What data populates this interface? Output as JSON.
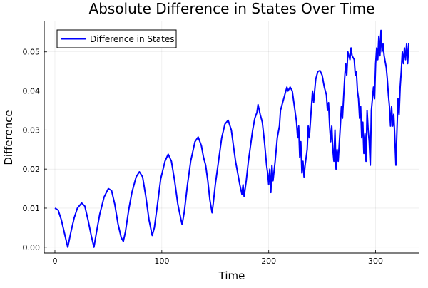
{
  "chart_data": {
    "type": "line",
    "title": "Absolute Difference in States Over Time",
    "xlabel": "Time",
    "ylabel": "Difference",
    "xlim": [
      -10,
      341
    ],
    "ylim": [
      -0.0015,
      0.0578
    ],
    "xticks": [
      0,
      100,
      200,
      300
    ],
    "xtick_labels": [
      "0",
      "100",
      "200",
      "300"
    ],
    "yticks": [
      0,
      0.01,
      0.02,
      0.03,
      0.04,
      0.05
    ],
    "ytick_labels": [
      "0.00",
      "0.01",
      "0.02",
      "0.03",
      "0.04",
      "0.05"
    ],
    "grid": true,
    "legend_position": "top-left",
    "series": [
      {
        "name": "Difference in States",
        "color": "#0000ff",
        "x": [
          0,
          3,
          6,
          9,
          12,
          15,
          18,
          21,
          25,
          28,
          31,
          34,
          36.5,
          39,
          42,
          46,
          50,
          53,
          56,
          59,
          62,
          64,
          66,
          69,
          72,
          76,
          79,
          82,
          85,
          88,
          91,
          93,
          96,
          99,
          103,
          106,
          109,
          112,
          115,
          118,
          119,
          121,
          124,
          127,
          131,
          134,
          137,
          139,
          141,
          143,
          145,
          147,
          148,
          150,
          153,
          156,
          159,
          162,
          165,
          167,
          169,
          171,
          173,
          175,
          176,
          177,
          179,
          181,
          183,
          185,
          187,
          189,
          190,
          192,
          194,
          196,
          197,
          198,
          199,
          200,
          201,
          202,
          203,
          204,
          206,
          208,
          210,
          211,
          213,
          215,
          217,
          218,
          220,
          222,
          224,
          226,
          227,
          228,
          229,
          230,
          231,
          232,
          233,
          234,
          236,
          237,
          238,
          240,
          241,
          242,
          244,
          246,
          248,
          250,
          252,
          254,
          255,
          256,
          257,
          258,
          259,
          260,
          261,
          262,
          263,
          264,
          265,
          267,
          268,
          269,
          270,
          271,
          272,
          273,
          274,
          276,
          277,
          278,
          280,
          281,
          282,
          283,
          284,
          285,
          286,
          287,
          288,
          289,
          290,
          291,
          292,
          293,
          294,
          295,
          296,
          298,
          299,
          300,
          301,
          302,
          303,
          304,
          305,
          306,
          307,
          308,
          310,
          311,
          312,
          313,
          314,
          315,
          316,
          317,
          318,
          319,
          320,
          321,
          322,
          323,
          324,
          325,
          326,
          327,
          328,
          329,
          330,
          331
        ],
        "y": [
          0.01,
          0.0095,
          0.007,
          0.0035,
          0.0,
          0.004,
          0.0075,
          0.01,
          0.0113,
          0.0105,
          0.007,
          0.003,
          0.0,
          0.004,
          0.0085,
          0.0128,
          0.015,
          0.0145,
          0.011,
          0.006,
          0.0025,
          0.0015,
          0.004,
          0.0095,
          0.014,
          0.018,
          0.0193,
          0.018,
          0.013,
          0.007,
          0.003,
          0.005,
          0.011,
          0.0175,
          0.022,
          0.0238,
          0.022,
          0.017,
          0.011,
          0.007,
          0.0058,
          0.009,
          0.016,
          0.022,
          0.027,
          0.0282,
          0.026,
          0.023,
          0.021,
          0.017,
          0.012,
          0.0088,
          0.011,
          0.016,
          0.022,
          0.028,
          0.0315,
          0.0325,
          0.03,
          0.026,
          0.022,
          0.019,
          0.016,
          0.0135,
          0.016,
          0.013,
          0.017,
          0.022,
          0.026,
          0.03,
          0.033,
          0.0345,
          0.0365,
          0.034,
          0.032,
          0.027,
          0.024,
          0.021,
          0.019,
          0.016,
          0.02,
          0.014,
          0.021,
          0.017,
          0.022,
          0.028,
          0.031,
          0.035,
          0.037,
          0.039,
          0.041,
          0.04,
          0.041,
          0.04,
          0.036,
          0.032,
          0.028,
          0.031,
          0.023,
          0.027,
          0.019,
          0.022,
          0.018,
          0.021,
          0.025,
          0.031,
          0.028,
          0.036,
          0.04,
          0.037,
          0.043,
          0.045,
          0.0452,
          0.044,
          0.041,
          0.039,
          0.035,
          0.037,
          0.031,
          0.027,
          0.031,
          0.025,
          0.022,
          0.03,
          0.02,
          0.025,
          0.022,
          0.031,
          0.036,
          0.033,
          0.038,
          0.043,
          0.047,
          0.044,
          0.05,
          0.048,
          0.051,
          0.049,
          0.048,
          0.044,
          0.045,
          0.04,
          0.038,
          0.033,
          0.036,
          0.028,
          0.032,
          0.024,
          0.029,
          0.022,
          0.035,
          0.03,
          0.027,
          0.021,
          0.035,
          0.041,
          0.038,
          0.047,
          0.051,
          0.048,
          0.054,
          0.049,
          0.0555,
          0.05,
          0.052,
          0.049,
          0.046,
          0.043,
          0.039,
          0.036,
          0.031,
          0.036,
          0.031,
          0.034,
          0.028,
          0.021,
          0.03,
          0.038,
          0.034,
          0.041,
          0.045,
          0.05,
          0.047,
          0.051,
          0.048,
          0.052,
          0.047,
          0.0522
        ]
      }
    ]
  }
}
